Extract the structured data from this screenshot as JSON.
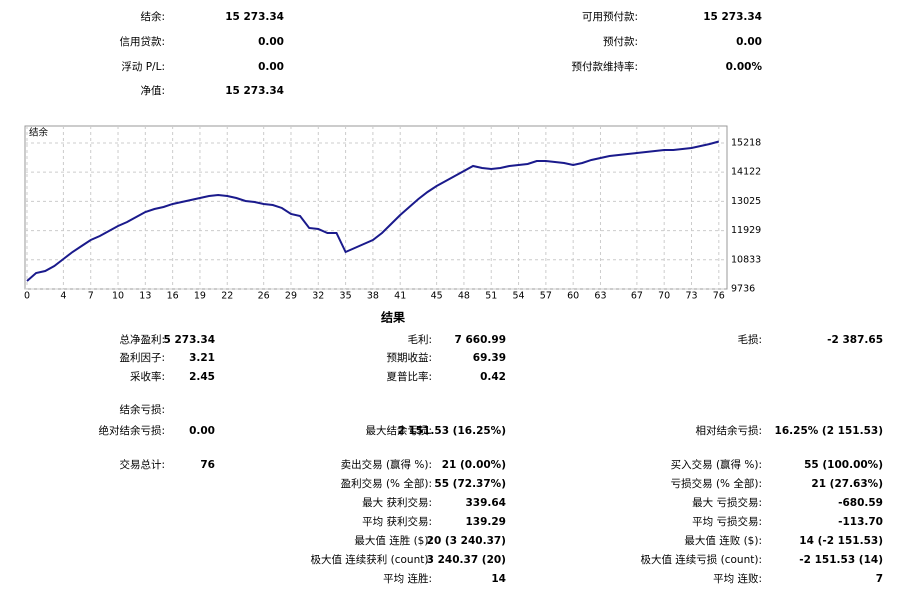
{
  "account": {
    "left": [
      {
        "label": "结余:",
        "value": "15 273.34"
      },
      {
        "label": "信用贷款:",
        "value": "0.00"
      },
      {
        "label": "浮动 P/L:",
        "value": "0.00"
      },
      {
        "label": "净值:",
        "value": "15 273.34"
      }
    ],
    "right": [
      {
        "label": "可用预付款:",
        "value": "15 273.34"
      },
      {
        "label": "预付款:",
        "value": "0.00"
      },
      {
        "label": "预付款维持率:",
        "value": "0.00%"
      }
    ]
  },
  "chart_data": {
    "type": "line",
    "title": "结余",
    "x": [
      0,
      1,
      2,
      3,
      4,
      5,
      6,
      7,
      8,
      9,
      10,
      11,
      12,
      13,
      14,
      15,
      16,
      17,
      18,
      19,
      20,
      21,
      22,
      23,
      24,
      25,
      26,
      27,
      28,
      29,
      30,
      31,
      32,
      33,
      34,
      35,
      36,
      37,
      38,
      39,
      40,
      41,
      42,
      43,
      44,
      45,
      46,
      47,
      48,
      49,
      50,
      51,
      52,
      53,
      54,
      55,
      56,
      57,
      58,
      59,
      60,
      61,
      62,
      63,
      64,
      65,
      66,
      67,
      68,
      69,
      70,
      71,
      72,
      73,
      74,
      75,
      76
    ],
    "series": [
      {
        "name": "结余",
        "color": "#1a1a8c",
        "values": [
          10036,
          10337,
          10412,
          10600,
          10863,
          11125,
          11351,
          11576,
          11726,
          11914,
          12102,
          12252,
          12440,
          12627,
          12740,
          12815,
          12928,
          13003,
          13078,
          13153,
          13228,
          13266,
          13228,
          13153,
          13040,
          13003,
          12928,
          12890,
          12778,
          12552,
          12477,
          12027,
          11989,
          11839,
          11839,
          11125,
          11276,
          11426,
          11576,
          11839,
          12177,
          12515,
          12815,
          13116,
          13378,
          13604,
          13791,
          13979,
          14167,
          14355,
          14280,
          14242,
          14280,
          14355,
          14392,
          14430,
          14542,
          14542,
          14505,
          14467,
          14392,
          14467,
          14580,
          14655,
          14730,
          14768,
          14805,
          14843,
          14880,
          14918,
          14955,
          14955,
          14993,
          15031,
          15106,
          15181,
          15273.34
        ]
      }
    ],
    "xlim": [
      0,
      76.9
    ],
    "xticks": [
      0,
      4,
      7,
      10,
      13,
      16,
      19,
      22,
      26,
      29,
      32,
      35,
      38,
      41,
      45,
      48,
      51,
      54,
      57,
      60,
      63,
      67,
      70,
      73,
      76
    ],
    "ylim": [
      9736,
      15856
    ],
    "yticks": [
      9736,
      10833,
      11929,
      13025,
      14122,
      15218
    ],
    "grid": true
  },
  "results": {
    "title": "结果",
    "rows": [
      [
        {
          "label": "总净盈利:",
          "value": "5 273.34"
        },
        {
          "label": "毛利:",
          "value": "7 660.99"
        },
        {
          "label": "毛损:",
          "value": "-2 387.65"
        }
      ],
      [
        {
          "label": "盈利因子:",
          "value": "3.21"
        },
        {
          "label": "预期收益:",
          "value": "69.39"
        },
        null
      ],
      [
        {
          "label": "采收率:",
          "value": "2.45"
        },
        {
          "label": "夏普比率:",
          "value": "0.42"
        },
        null
      ],
      [
        {
          "label": "结余亏损:"
        },
        null,
        null
      ],
      [
        {
          "label": "绝对结余亏损:",
          "value": "0.00"
        },
        {
          "label": "最大结余亏损:",
          "value": "2 151.53 (16.25%)"
        },
        {
          "label": "相对结余亏损:",
          "value": "16.25% (2 151.53)"
        }
      ],
      [
        {
          "label": "交易总计:",
          "value": "76"
        },
        {
          "label": "卖出交易 (赢得 %):",
          "value": "21 (0.00%)"
        },
        {
          "label": "买入交易 (赢得 %):",
          "value": "55 (100.00%)"
        }
      ],
      [
        null,
        {
          "label": "盈利交易 (% 全部):",
          "value": "55 (72.37%)"
        },
        {
          "label": "亏损交易 (% 全部):",
          "value": "21 (27.63%)"
        }
      ],
      [
        null,
        {
          "label": "最大 获利交易:",
          "value": "339.64"
        },
        {
          "label": "最大 亏损交易:",
          "value": "-680.59"
        }
      ],
      [
        null,
        {
          "label": "平均 获利交易:",
          "value": "139.29"
        },
        {
          "label": "平均 亏损交易:",
          "value": "-113.70"
        }
      ],
      [
        null,
        {
          "label": "最大值 连胜 ($):",
          "value": "20 (3 240.37)"
        },
        {
          "label": "最大值 连败 ($):",
          "value": "14 (-2 151.53)"
        }
      ],
      [
        null,
        {
          "label": "极大值 连续获利 (count):",
          "value": "3 240.37 (20)"
        },
        {
          "label": "极大值 连续亏损 (count):",
          "value": "-2 151.53 (14)"
        }
      ],
      [
        null,
        {
          "label": "平均 连胜:",
          "value": "14"
        },
        {
          "label": "平均 连败:",
          "value": "7"
        }
      ]
    ]
  }
}
